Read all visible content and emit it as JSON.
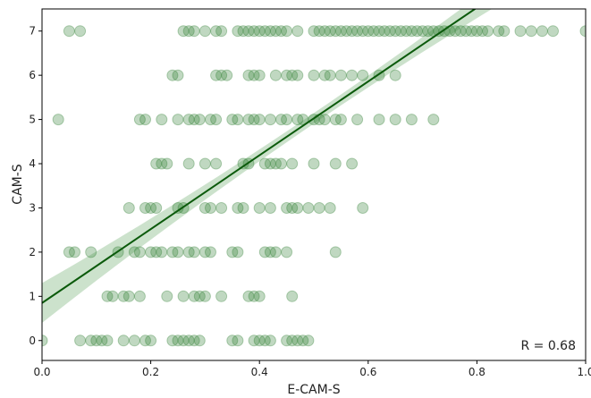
{
  "chart_data": {
    "type": "scatter",
    "xlabel": "E-CAM-S",
    "ylabel": "CAM-S",
    "xlim": [
      0.0,
      1.0
    ],
    "ylim": [
      -0.45,
      7.5
    ],
    "xticks": [
      "0.0",
      "0.2",
      "0.4",
      "0.6",
      "0.8",
      "1.0"
    ],
    "yticks": [
      "0",
      "1",
      "2",
      "3",
      "4",
      "5",
      "6",
      "7"
    ],
    "grid": false,
    "annotation": "R = 0.68",
    "colors": {
      "point": "#2e7d32",
      "line": "#0b5a0b",
      "band": "#8fbf8f",
      "axes": "#000000"
    },
    "regression": {
      "intercept": 0.85,
      "slope": 8.35,
      "ci_halfwidth_ends": 0.45,
      "ci_halfwidth_mid": 0.12
    },
    "points": [
      {
        "y": 7,
        "x": [
          0.05,
          0.07,
          0.26,
          0.27,
          0.28,
          0.3,
          0.32,
          0.33,
          0.36,
          0.37,
          0.38,
          0.39,
          0.4,
          0.41,
          0.42,
          0.43,
          0.44,
          0.45,
          0.47,
          0.5,
          0.51,
          0.52,
          0.53,
          0.54,
          0.55,
          0.56,
          0.57,
          0.58,
          0.59,
          0.6,
          0.61,
          0.62,
          0.63,
          0.64,
          0.65,
          0.66,
          0.67,
          0.68,
          0.69,
          0.7,
          0.71,
          0.72,
          0.73,
          0.74,
          0.75,
          0.76,
          0.77,
          0.78,
          0.79,
          0.8,
          0.81,
          0.82,
          0.84,
          0.85,
          0.88,
          0.9,
          0.92,
          0.94,
          1.0
        ]
      },
      {
        "y": 6,
        "x": [
          0.24,
          0.25,
          0.32,
          0.33,
          0.34,
          0.38,
          0.39,
          0.4,
          0.43,
          0.45,
          0.46,
          0.47,
          0.5,
          0.52,
          0.53,
          0.55,
          0.57,
          0.59,
          0.62,
          0.65
        ]
      },
      {
        "y": 5,
        "x": [
          0.03,
          0.18,
          0.19,
          0.22,
          0.25,
          0.27,
          0.28,
          0.29,
          0.31,
          0.32,
          0.35,
          0.36,
          0.38,
          0.39,
          0.4,
          0.42,
          0.44,
          0.45,
          0.47,
          0.48,
          0.5,
          0.51,
          0.52,
          0.54,
          0.55,
          0.58,
          0.62,
          0.65,
          0.68,
          0.72
        ]
      },
      {
        "y": 4,
        "x": [
          0.21,
          0.22,
          0.23,
          0.27,
          0.3,
          0.32,
          0.37,
          0.38,
          0.41,
          0.42,
          0.43,
          0.44,
          0.46,
          0.5,
          0.54,
          0.57
        ]
      },
      {
        "y": 3,
        "x": [
          0.16,
          0.19,
          0.2,
          0.21,
          0.25,
          0.26,
          0.3,
          0.31,
          0.33,
          0.36,
          0.37,
          0.4,
          0.42,
          0.45,
          0.46,
          0.47,
          0.49,
          0.51,
          0.53,
          0.59
        ]
      },
      {
        "y": 2,
        "x": [
          0.05,
          0.06,
          0.09,
          0.14,
          0.17,
          0.18,
          0.2,
          0.21,
          0.22,
          0.24,
          0.25,
          0.27,
          0.28,
          0.3,
          0.31,
          0.35,
          0.36,
          0.41,
          0.42,
          0.43,
          0.45,
          0.54
        ]
      },
      {
        "y": 1,
        "x": [
          0.12,
          0.13,
          0.15,
          0.16,
          0.18,
          0.23,
          0.26,
          0.28,
          0.29,
          0.3,
          0.33,
          0.38,
          0.39,
          0.4,
          0.46
        ]
      },
      {
        "y": 0,
        "x": [
          0.0,
          0.07,
          0.09,
          0.1,
          0.11,
          0.12,
          0.15,
          0.17,
          0.19,
          0.2,
          0.24,
          0.25,
          0.26,
          0.27,
          0.28,
          0.29,
          0.35,
          0.36,
          0.39,
          0.4,
          0.41,
          0.42,
          0.45,
          0.46,
          0.47,
          0.48,
          0.49
        ]
      }
    ]
  }
}
